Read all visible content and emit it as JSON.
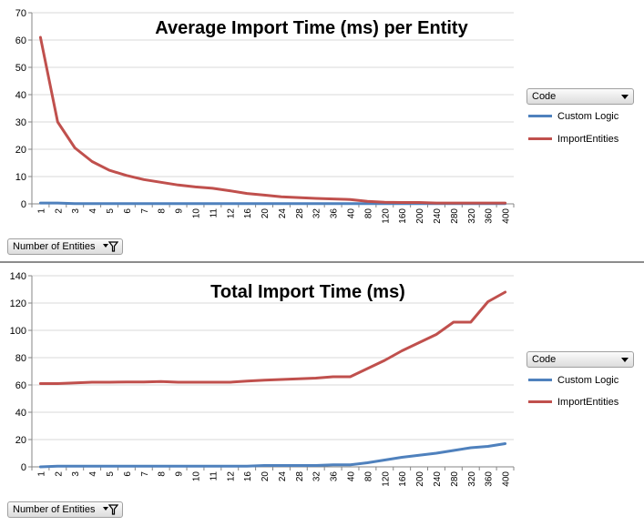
{
  "colors": {
    "custom_logic": "#4f81bd",
    "import_entities": "#c0504d",
    "grid": "#d9d9d9",
    "axis": "#868686"
  },
  "charts": [
    {
      "legend": {
        "field_label": "Code",
        "items": [
          "Custom Logic",
          "ImportEntities"
        ]
      },
      "filter": {
        "label": "Number of Entities"
      }
    },
    {
      "legend": {
        "field_label": "Code",
        "items": [
          "Custom Logic",
          "ImportEntities"
        ]
      },
      "filter": {
        "label": "Number of Entities"
      }
    }
  ],
  "chart_data": [
    {
      "type": "line",
      "title": "Average Import Time (ms) per Entity",
      "xlabel": "",
      "ylabel": "",
      "ylim": [
        0,
        70
      ],
      "yticks": [
        0,
        10,
        20,
        30,
        40,
        50,
        60,
        70
      ],
      "grid": true,
      "legend_position": "right",
      "categories": [
        "1",
        "2",
        "3",
        "4",
        "5",
        "6",
        "7",
        "8",
        "9",
        "10",
        "11",
        "12",
        "16",
        "20",
        "24",
        "28",
        "32",
        "36",
        "40",
        "80",
        "120",
        "160",
        "200",
        "240",
        "280",
        "320",
        "360",
        "400"
      ],
      "series": [
        {
          "name": "Custom Logic",
          "values": [
            0.3,
            0.3,
            0.1,
            0.1,
            0.1,
            0.1,
            0.1,
            0.1,
            0.1,
            0.1,
            0.1,
            0.1,
            0.1,
            0.1,
            0.1,
            0.1,
            0.1,
            0.1,
            0.1,
            0.1,
            0.1,
            0.1,
            0.1,
            0.1,
            0.1,
            0.1,
            0.1,
            0.1
          ]
        },
        {
          "name": "ImportEntities",
          "values": [
            61,
            30,
            20.5,
            15.5,
            12.3,
            10.4,
            8.9,
            7.9,
            6.9,
            6.2,
            5.7,
            4.8,
            3.8,
            3.2,
            2.6,
            2.3,
            2.0,
            1.8,
            1.6,
            0.9,
            0.6,
            0.5,
            0.5,
            0.3,
            0.3,
            0.3,
            0.3,
            0.3
          ]
        }
      ]
    },
    {
      "type": "line",
      "title": "Total Import Time (ms)",
      "xlabel": "",
      "ylabel": "",
      "ylim": [
        0,
        140
      ],
      "yticks": [
        0,
        20,
        40,
        60,
        80,
        100,
        120,
        140
      ],
      "grid": true,
      "legend_position": "right",
      "categories": [
        "1",
        "2",
        "3",
        "4",
        "5",
        "6",
        "7",
        "8",
        "9",
        "10",
        "11",
        "12",
        "16",
        "20",
        "24",
        "28",
        "32",
        "36",
        "40",
        "80",
        "120",
        "160",
        "200",
        "240",
        "280",
        "320",
        "360",
        "400"
      ],
      "series": [
        {
          "name": "Custom Logic",
          "values": [
            0,
            0.5,
            0.5,
            0.5,
            0.5,
            0.5,
            0.5,
            0.5,
            0.5,
            0.5,
            0.5,
            0.5,
            0.5,
            1,
            1,
            1,
            1,
            1.5,
            1.5,
            3,
            5,
            7,
            8.5,
            10,
            12,
            14,
            15,
            17
          ]
        },
        {
          "name": "ImportEntities",
          "values": [
            61,
            61,
            61.5,
            62,
            62,
            62.2,
            62.2,
            62.5,
            62,
            62,
            62,
            62,
            62.8,
            63.5,
            64,
            64.5,
            65,
            66,
            66,
            72,
            78,
            85,
            91,
            97,
            106,
            106,
            121,
            128
          ]
        }
      ]
    }
  ]
}
